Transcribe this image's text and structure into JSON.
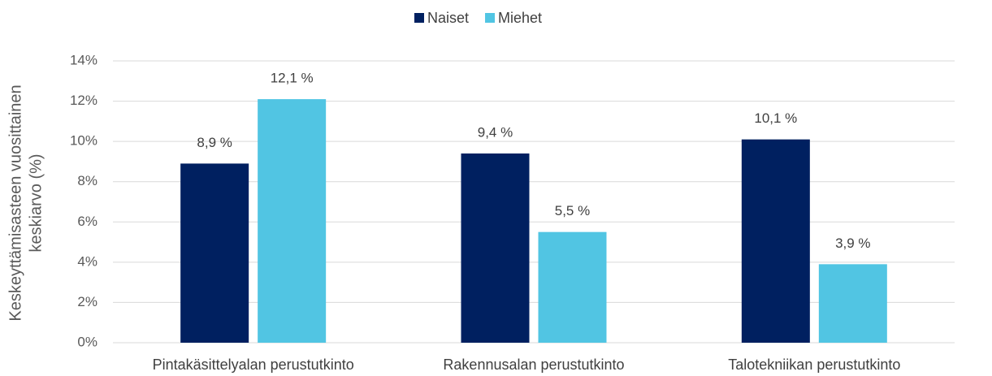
{
  "chart_data": {
    "type": "bar",
    "ylabel": [
      "Keskeyttämisasteen vuosittainen",
      "keskiarvo (%)"
    ],
    "categories": [
      "Pintakäsittelyalan perustutkinto",
      "Rakennusalan perustutkinto",
      "Talotekniikan perustutkinto"
    ],
    "series": [
      {
        "name": "Naiset",
        "color": "#002060",
        "values": [
          8.9,
          9.4,
          10.1
        ],
        "value_labels": [
          "8,9 %",
          "9,4 %",
          "10,1 %"
        ]
      },
      {
        "name": "Miehet",
        "color": "#51c5e3",
        "values": [
          12.1,
          5.5,
          3.9
        ],
        "value_labels": [
          "12,1 %",
          "5,5 %",
          "3,9 %"
        ]
      }
    ],
    "ylim": [
      0,
      14
    ],
    "yticks": [
      {
        "value": 0,
        "label": "0%"
      },
      {
        "value": 2,
        "label": "2%"
      },
      {
        "value": 4,
        "label": "4%"
      },
      {
        "value": 6,
        "label": "6%"
      },
      {
        "value": 8,
        "label": "8%"
      },
      {
        "value": 10,
        "label": "10%"
      },
      {
        "value": 12,
        "label": "12%"
      },
      {
        "value": 14,
        "label": "14%"
      }
    ],
    "grid": true,
    "legend": "top"
  }
}
